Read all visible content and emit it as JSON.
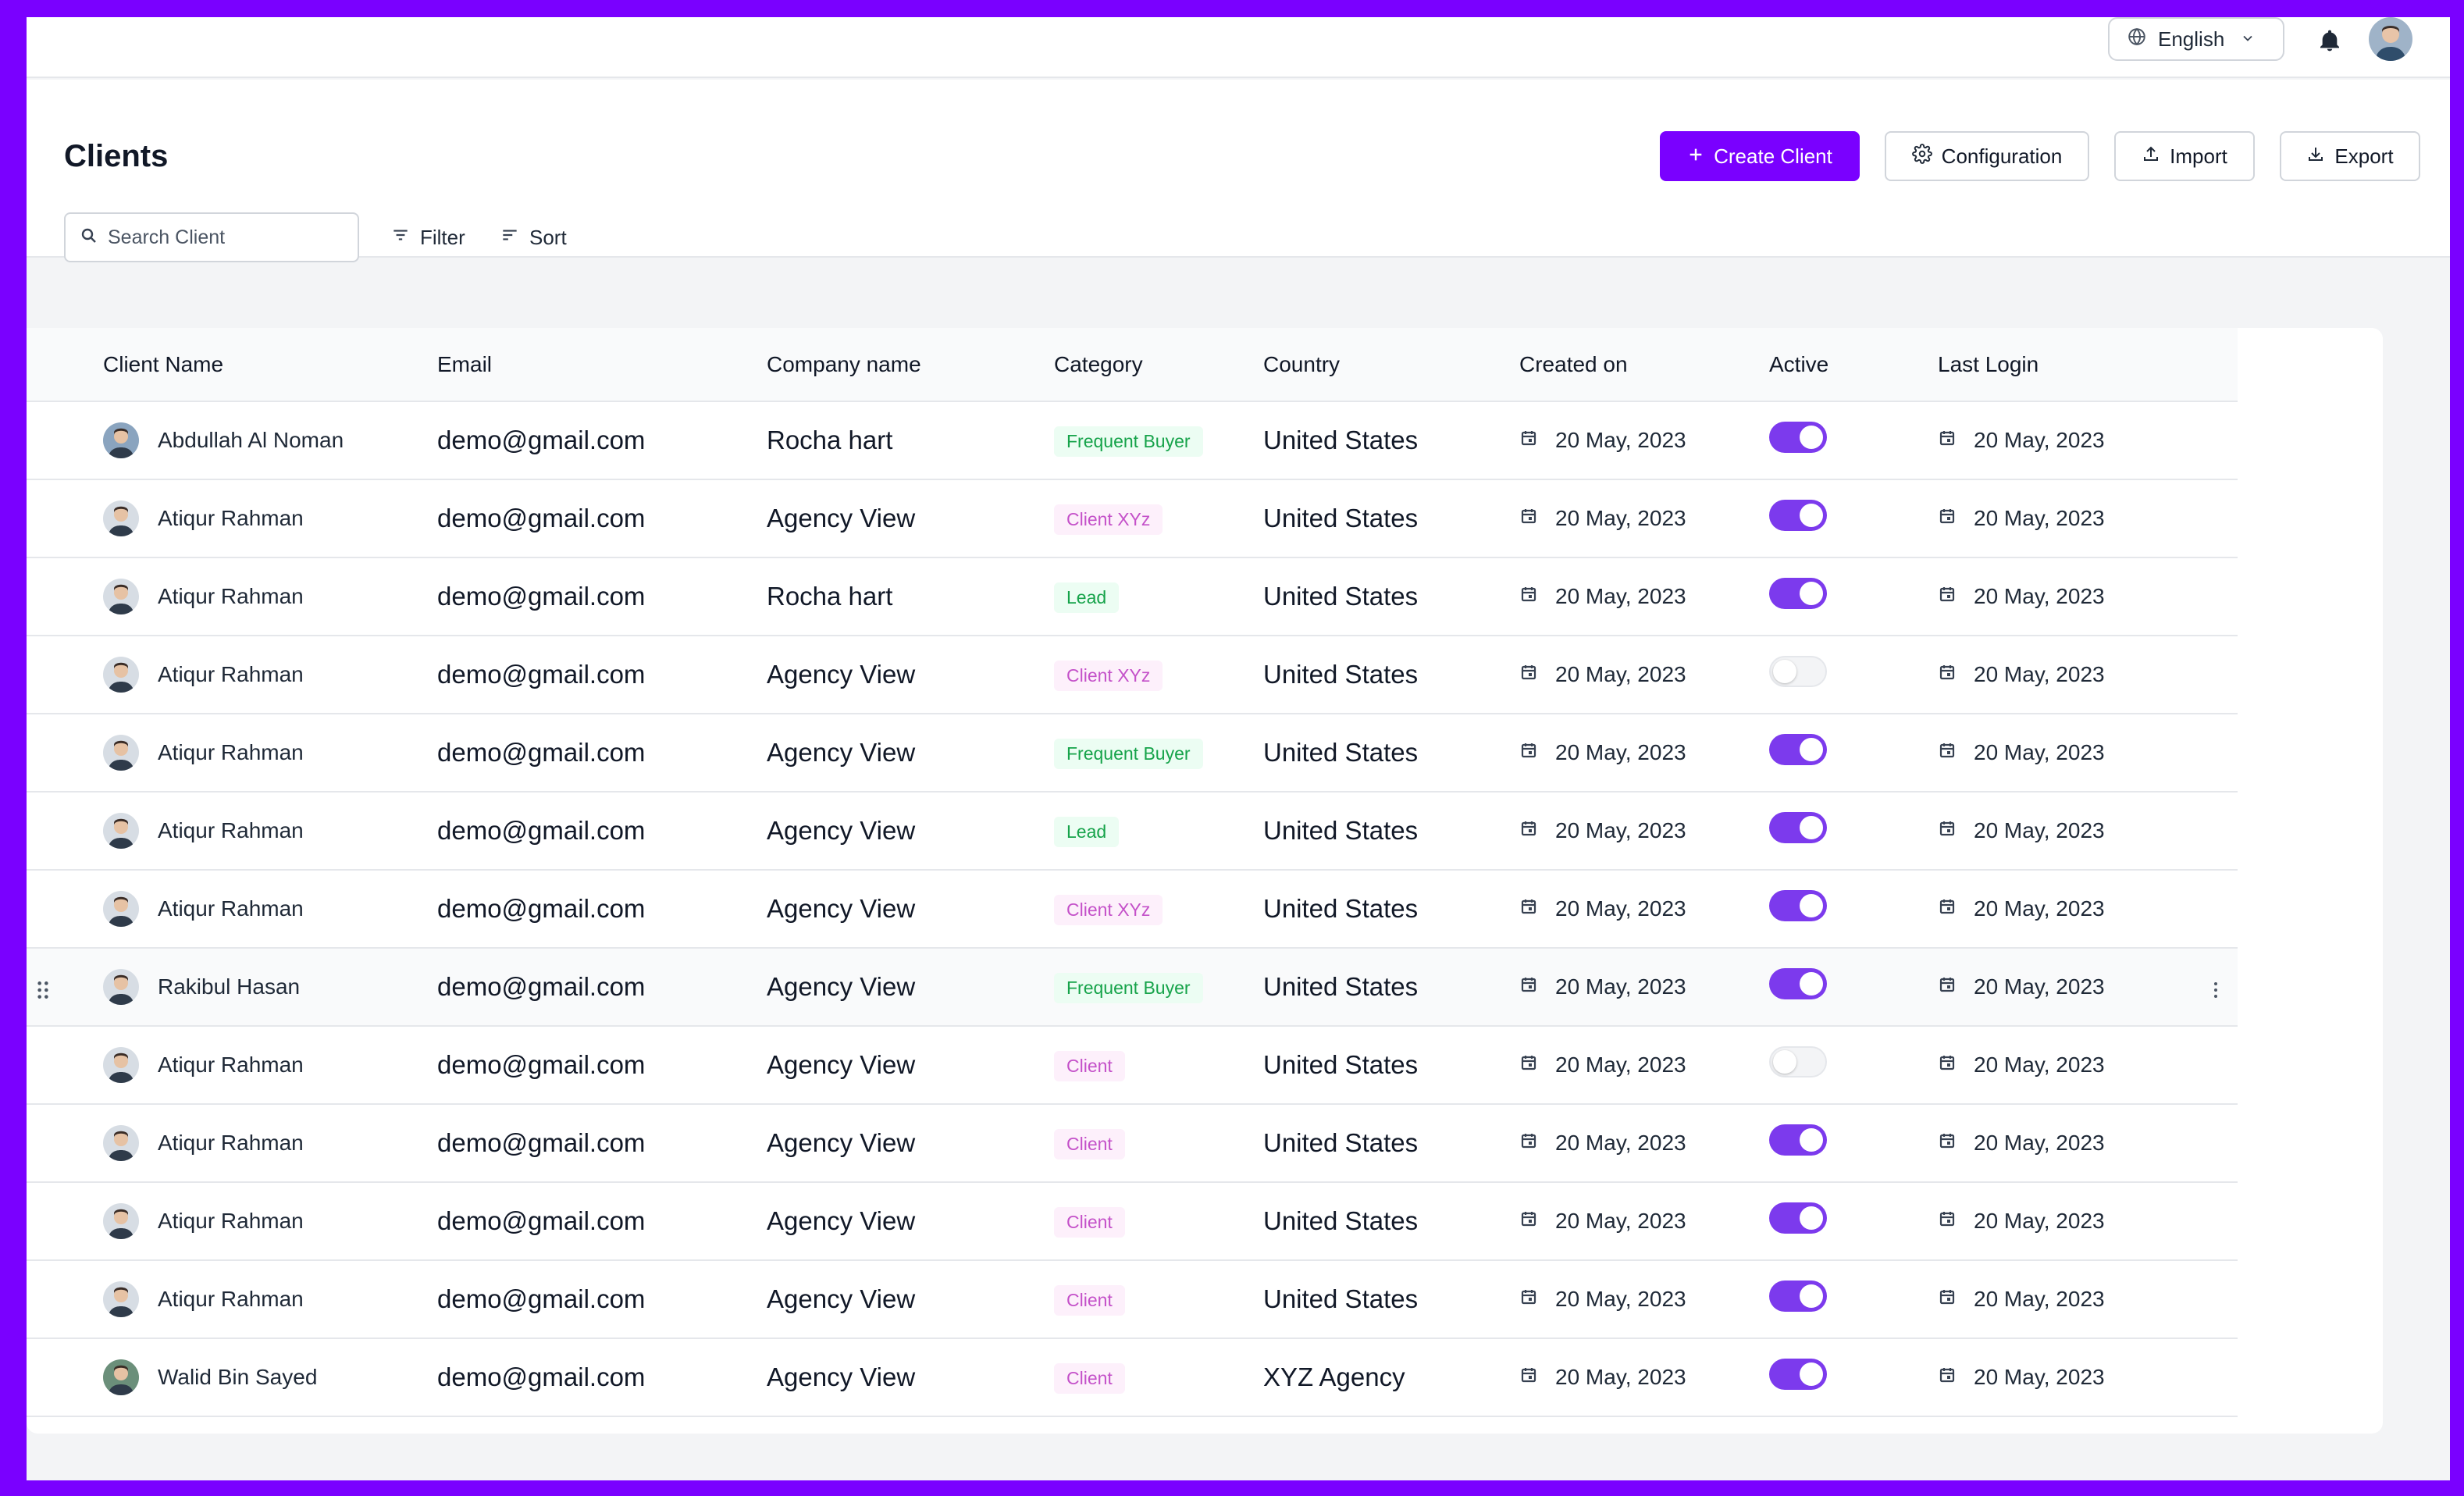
{
  "topbar": {
    "language": "English",
    "icons": {
      "globe": "globe-icon",
      "chevron": "chevron-down-icon",
      "bell": "bell-icon"
    }
  },
  "header": {
    "title": "Clients",
    "buttons": {
      "create": "Create Client",
      "configuration": "Configuration",
      "import": "Import",
      "export": "Export"
    },
    "search_placeholder": "Search Client",
    "filter_label": "Filter",
    "sort_label": "Sort"
  },
  "colors": {
    "accent": "#7a00ff",
    "toggle_on": "#7c3aed",
    "badge_green_bg": "#ecfdf3",
    "badge_green_text": "#16a34a",
    "badge_pink_bg": "#fdf0fb",
    "badge_pink_text": "#c451c9"
  },
  "table": {
    "columns": [
      "Client Name",
      "Email",
      "Company name",
      "Category",
      "Country",
      "Created on",
      "Active",
      "Last Login"
    ],
    "rows": [
      {
        "name": "Abdullah Al Noman",
        "email": "demo@gmail.com",
        "company": "Rocha hart",
        "category": "Frequent Buyer",
        "category_tone": "green",
        "country": "United States",
        "created": "20 May, 2023",
        "active": true,
        "last_login": "20 May, 2023"
      },
      {
        "name": "Atiqur Rahman",
        "email": "demo@gmail.com",
        "company": "Agency View",
        "category": "Client XYz",
        "category_tone": "pink",
        "country": "United States",
        "created": "20 May, 2023",
        "active": true,
        "last_login": "20 May, 2023"
      },
      {
        "name": "Atiqur Rahman",
        "email": "demo@gmail.com",
        "company": "Rocha hart",
        "category": "Lead",
        "category_tone": "green",
        "country": "United States",
        "created": "20 May, 2023",
        "active": true,
        "last_login": "20 May, 2023"
      },
      {
        "name": "Atiqur Rahman",
        "email": "demo@gmail.com",
        "company": "Agency View",
        "category": "Client XYz",
        "category_tone": "pink",
        "country": "United States",
        "created": "20 May, 2023",
        "active": false,
        "last_login": "20 May, 2023"
      },
      {
        "name": "Atiqur Rahman",
        "email": "demo@gmail.com",
        "company": "Agency View",
        "category": "Frequent Buyer",
        "category_tone": "green",
        "country": "United States",
        "created": "20 May, 2023",
        "active": true,
        "last_login": "20 May, 2023"
      },
      {
        "name": "Atiqur Rahman",
        "email": "demo@gmail.com",
        "company": "Agency View",
        "category": "Lead",
        "category_tone": "green",
        "country": "United States",
        "created": "20 May, 2023",
        "active": true,
        "last_login": "20 May, 2023"
      },
      {
        "name": "Atiqur Rahman",
        "email": "demo@gmail.com",
        "company": "Agency View",
        "category": "Client XYz",
        "category_tone": "pink",
        "country": "United States",
        "created": "20 May, 2023",
        "active": true,
        "last_login": "20 May, 2023"
      },
      {
        "name": "Rakibul Hasan",
        "email": "demo@gmail.com",
        "company": "Agency View",
        "category": "Frequent Buyer",
        "category_tone": "green",
        "country": "United States",
        "created": "20 May, 2023",
        "active": true,
        "last_login": "20 May, 2023",
        "highlighted": true
      },
      {
        "name": "Atiqur Rahman",
        "email": "demo@gmail.com",
        "company": "Agency View",
        "category": "Client",
        "category_tone": "pink",
        "country": "United States",
        "created": "20 May, 2023",
        "active": false,
        "last_login": "20 May, 2023"
      },
      {
        "name": "Atiqur Rahman",
        "email": "demo@gmail.com",
        "company": "Agency View",
        "category": "Client",
        "category_tone": "pink",
        "country": "United States",
        "created": "20 May, 2023",
        "active": true,
        "last_login": "20 May, 2023"
      },
      {
        "name": "Atiqur Rahman",
        "email": "demo@gmail.com",
        "company": "Agency View",
        "category": "Client",
        "category_tone": "pink",
        "country": "United States",
        "created": "20 May, 2023",
        "active": true,
        "last_login": "20 May, 2023"
      },
      {
        "name": "Atiqur Rahman",
        "email": "demo@gmail.com",
        "company": "Agency View",
        "category": "Client",
        "category_tone": "pink",
        "country": "United States",
        "created": "20 May, 2023",
        "active": true,
        "last_login": "20 May, 2023"
      },
      {
        "name": "Walid Bin Sayed",
        "email": "demo@gmail.com",
        "company": "Agency View",
        "category": "Client",
        "category_tone": "pink",
        "country": "XYZ Agency",
        "created": "20 May, 2023",
        "active": true,
        "last_login": "20 May, 2023"
      }
    ]
  }
}
